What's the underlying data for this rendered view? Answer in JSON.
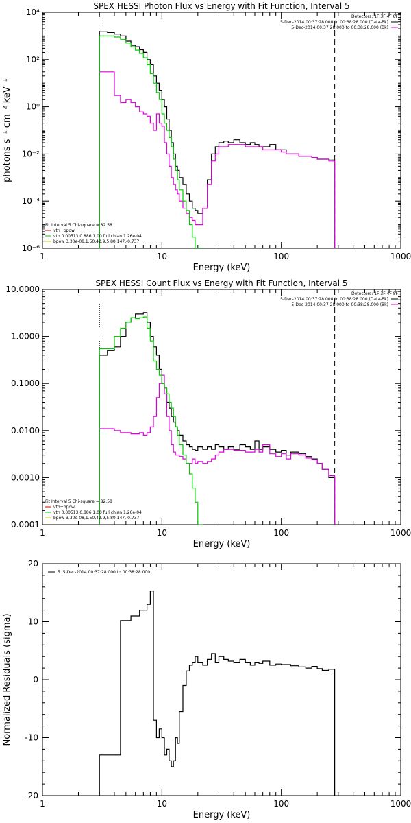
{
  "colors": {
    "data": "#000000",
    "total": "#dd00dd",
    "vth": "#00cc00",
    "bpow": "#cccc00",
    "red": "#cc0000",
    "background": "#ffffff"
  },
  "chart_data": [
    {
      "type": "line",
      "title": "SPEX HESSI Photon Flux vs Energy with Fit Function, Interval 5",
      "xlabel": "Energy (keV)",
      "ylabel": "photons s⁻¹ cm⁻² keV⁻¹",
      "xscale": "log",
      "yscale": "log",
      "xlim": [
        1,
        1000
      ],
      "ylim": [
        1e-06,
        10000
      ],
      "xticks": [
        "1",
        "10",
        "100",
        "1000"
      ],
      "yticks": [
        "10⁻⁶",
        "10⁻⁴",
        "10⁻²",
        "10⁰",
        "10²",
        "10⁴"
      ],
      "detectors": "Detectors: 1F 3F 4F 8F",
      "legend_right": [
        {
          "text": "5-Dec-2014 00:37:28.000 to 00:38:28.000 (Data-Bk)",
          "color": "#000000"
        },
        {
          "text": "5-Dec-2014 00:37:28.000 to 00:38:28.000 (Bk)",
          "color": "#dd00dd"
        }
      ],
      "legend_left": [
        {
          "text": "Fit Interval 5   Chi-square = 82.58",
          "color": "#000000"
        },
        {
          "text": "vth+bpow",
          "color": "#cc0000"
        },
        {
          "text": "vth 0.00513,0.886,1.00  full chian 1.26e-04",
          "color": "#00cc00"
        },
        {
          "text": "bpow 3.30e-08,1.50,42.9,5.80,147,-0.737",
          "color": "#cccc00"
        }
      ],
      "vlines": [
        3,
        280
      ],
      "x": [
        3,
        3.5,
        4,
        4.5,
        5,
        5.5,
        6,
        6.5,
        7,
        7.5,
        8,
        8.5,
        9,
        9.5,
        10,
        10.5,
        11,
        11.5,
        12,
        12.5,
        13,
        13.5,
        14,
        15,
        16,
        17,
        18,
        19,
        20,
        22,
        24,
        26,
        28,
        30,
        33,
        36,
        40,
        45,
        50,
        55,
        60,
        65,
        70,
        80,
        90,
        100,
        110,
        120,
        140,
        160,
        180,
        200,
        220,
        250,
        280
      ],
      "series": [
        {
          "name": "Data-Bk",
          "color": "#000000",
          "values": [
            1500,
            1400,
            1200,
            1000,
            600,
            400,
            350,
            260,
            200,
            100,
            60,
            20,
            10,
            5,
            2,
            1,
            0.3,
            0.1,
            0.03,
            0.01,
            0.003,
            0.002,
            0.001,
            0.0005,
            0.0002,
            0.0001,
            5e-05,
            4e-05,
            3e-05,
            5e-05,
            0.0008,
            0.01,
            0.02,
            0.03,
            0.035,
            0.03,
            0.04,
            0.03,
            0.025,
            0.03,
            0.025,
            0.02,
            0.02,
            0.025,
            0.015,
            0.015,
            0.01,
            0.01,
            0.008,
            0.008,
            0.007,
            0.006,
            0.006,
            0.0055,
            0.005
          ]
        },
        {
          "name": "Bk",
          "color": "#dd00dd",
          "values": [
            30,
            30,
            3,
            1.5,
            2,
            1.5,
            1,
            0.6,
            0.5,
            0.4,
            0.2,
            0.1,
            0.5,
            0.2,
            0.15,
            0.03,
            0.01,
            0.003,
            0.001,
            0.0005,
            0.0003,
            0.0002,
            0.0001,
            5e-05,
            3e-05,
            2e-05,
            1.5e-05,
            1e-05,
            1e-05,
            5e-05,
            0.0005,
            0.005,
            0.01,
            0.02,
            0.02,
            0.025,
            0.025,
            0.025,
            0.02,
            0.02,
            0.02,
            0.02,
            0.015,
            0.015,
            0.015,
            0.012,
            0.01,
            0.01,
            0.008,
            0.008,
            0.007,
            0.006,
            0.006,
            0.005,
            0.005
          ]
        },
        {
          "name": "vth",
          "color": "#00cc00",
          "values": [
            1000,
            1000,
            900,
            700,
            500,
            350,
            250,
            180,
            120,
            60,
            25,
            10,
            4,
            2,
            0.5,
            0.2,
            0.1,
            0.05,
            0.02,
            0.006,
            0.002,
            0.0008,
            0.0003,
            0.0001,
            4e-05,
            1e-05,
            3e-06,
            1e-06,
            3e-07,
            null,
            null,
            null,
            null,
            null,
            null,
            null,
            null,
            null,
            null,
            null,
            null,
            null,
            null,
            null,
            null,
            null,
            null,
            null,
            null,
            null,
            null,
            null,
            null,
            null,
            null
          ]
        }
      ]
    },
    {
      "type": "line",
      "title": "SPEX HESSI Count Flux vs Energy with Fit Function, Interval 5",
      "xlabel": "Energy (keV)",
      "ylabel": "",
      "xscale": "log",
      "yscale": "log",
      "xlim": [
        1,
        1000
      ],
      "ylim": [
        0.0001,
        10
      ],
      "xticks": [
        "1",
        "10",
        "100",
        "1000"
      ],
      "yticks": [
        "0.0001",
        "0.0010",
        "0.0100",
        "0.1000",
        "1.0000",
        "10.0000"
      ],
      "detectors": "Detectors: 1F 3F 4F 8F",
      "legend_right": [
        {
          "text": "5-Dec-2014 00:37:28.000 to 00:38:28.000 (Data-Bk)",
          "color": "#000000"
        },
        {
          "text": "5-Dec-2014 00:37:28.000 to 00:38:28.000 (Bk)",
          "color": "#dd00dd"
        }
      ],
      "legend_left": [
        {
          "text": "Fit Interval 5   Chi-square = 82.58",
          "color": "#000000"
        },
        {
          "text": "vth+bpow",
          "color": "#cc0000"
        },
        {
          "text": "vth 0.00513,0.886,1.00  full chian 1.26e-04",
          "color": "#00cc00"
        },
        {
          "text": "bpow 3.30e-08,1.50,42.9,5.80,147,-0.737",
          "color": "#cccc00"
        }
      ],
      "vlines": [
        3,
        280
      ],
      "x": [
        3,
        3.5,
        4,
        4.5,
        5,
        5.5,
        6,
        6.5,
        7,
        7.5,
        8,
        8.5,
        9,
        9.5,
        10,
        10.5,
        11,
        11.5,
        12,
        12.5,
        13,
        13.5,
        14,
        15,
        16,
        17,
        18,
        19,
        20,
        22,
        24,
        26,
        28,
        30,
        33,
        36,
        40,
        45,
        50,
        55,
        60,
        65,
        70,
        80,
        90,
        100,
        110,
        120,
        140,
        160,
        180,
        200,
        220,
        250,
        280
      ],
      "series": [
        {
          "name": "Data-Bk",
          "color": "#000000",
          "values": [
            0.4,
            0.5,
            0.6,
            1.0,
            2.0,
            2.5,
            3.0,
            3.0,
            3.2,
            2.0,
            1.0,
            0.6,
            0.4,
            0.2,
            0.1,
            0.08,
            0.04,
            0.03,
            0.02,
            0.015,
            0.012,
            0.01,
            0.008,
            0.006,
            0.005,
            0.0045,
            0.004,
            0.0038,
            0.0045,
            0.004,
            0.0045,
            0.004,
            0.005,
            0.0045,
            0.004,
            0.0045,
            0.004,
            0.005,
            0.0045,
            0.004,
            0.006,
            0.004,
            0.0045,
            0.004,
            0.0035,
            0.0038,
            0.003,
            0.0035,
            0.0032,
            0.0028,
            0.0025,
            0.002,
            0.0015,
            0.001,
            0.0007
          ]
        },
        {
          "name": "Bk",
          "color": "#dd00dd",
          "values": [
            0.011,
            0.011,
            0.01,
            0.009,
            0.009,
            0.0085,
            0.0085,
            0.009,
            0.008,
            0.009,
            0.012,
            0.02,
            0.05,
            0.1,
            0.15,
            0.06,
            0.02,
            0.01,
            0.005,
            0.0035,
            0.003,
            0.003,
            0.0028,
            0.0025,
            0.002,
            0.002,
            0.0025,
            0.002,
            0.0022,
            0.002,
            0.0022,
            0.0025,
            0.003,
            0.0035,
            0.004,
            0.004,
            0.0038,
            0.0038,
            0.0035,
            0.0035,
            0.004,
            0.0035,
            0.005,
            0.0032,
            0.0028,
            0.0032,
            0.0025,
            0.0032,
            0.003,
            0.0026,
            0.0024,
            0.002,
            0.0015,
            0.0011,
            0.001
          ]
        },
        {
          "name": "vth",
          "color": "#00cc00",
          "values": [
            0.55,
            0.55,
            1.0,
            1.5,
            2.0,
            2.5,
            2.4,
            2.5,
            2.6,
            1.5,
            0.8,
            0.3,
            0.2,
            0.15,
            0.1,
            0.08,
            0.06,
            0.04,
            0.03,
            0.02,
            0.012,
            0.008,
            0.005,
            0.003,
            0.002,
            0.0012,
            0.0006,
            0.0003,
            0.0001,
            null,
            null,
            null,
            null,
            null,
            null,
            null,
            null,
            null,
            null,
            null,
            null,
            null,
            null,
            null,
            null,
            null,
            null,
            null,
            null,
            null,
            null,
            null,
            null,
            null,
            null
          ]
        }
      ]
    },
    {
      "type": "line",
      "title": "",
      "xlabel": "Energy (keV)",
      "ylabel": "Normalized Residuals (sigma)",
      "xscale": "log",
      "yscale": "linear",
      "xlim": [
        1,
        1000
      ],
      "ylim": [
        -20,
        20
      ],
      "xticks": [
        "1",
        "10",
        "100",
        "1000"
      ],
      "yticks": [
        "-20",
        "-10",
        "0",
        "10",
        "20"
      ],
      "legend_left": [
        {
          "text": "5. 5-Dec-2014 00:37:28.000 to 00:38:28.000",
          "color": "#000000"
        }
      ],
      "vlines": [],
      "x": [
        3,
        3.5,
        4,
        4.5,
        5,
        5.5,
        6,
        6.5,
        7,
        7.5,
        8,
        8.5,
        9,
        9.5,
        10,
        10.5,
        11,
        11.5,
        12,
        12.5,
        13,
        13.5,
        14,
        15,
        16,
        17,
        18,
        19,
        20,
        22,
        24,
        26,
        28,
        30,
        33,
        36,
        40,
        45,
        50,
        55,
        60,
        65,
        70,
        80,
        90,
        100,
        110,
        120,
        140,
        160,
        180,
        200,
        220,
        250,
        280
      ],
      "series": [
        {
          "name": "Residuals",
          "color": "#000000",
          "values": [
            -13,
            -13,
            -13,
            10.2,
            10.2,
            11,
            11,
            12,
            12,
            13,
            15.3,
            -7,
            -10,
            -8.5,
            -10,
            -13,
            -12,
            -14,
            -15,
            -14,
            -10,
            -11,
            -5.5,
            -1,
            1.5,
            2.5,
            3,
            4,
            3,
            2.5,
            3.5,
            4.5,
            3,
            4,
            3.5,
            3.2,
            3,
            3.5,
            3,
            2.5,
            3,
            2.8,
            3.2,
            2.5,
            2.7,
            2.6,
            2.6,
            2.4,
            2.2,
            2,
            2.3,
            1.9,
            1.6,
            1.8,
            1.4
          ]
        }
      ]
    }
  ]
}
